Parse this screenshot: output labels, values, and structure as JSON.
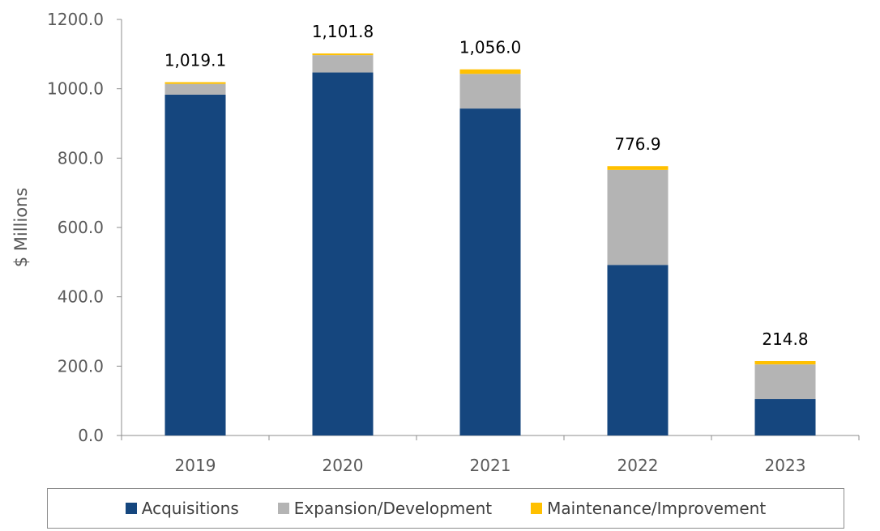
{
  "chart_data": {
    "type": "bar",
    "stacked": true,
    "categories": [
      "2019",
      "2020",
      "2021",
      "2022",
      "2023"
    ],
    "series": [
      {
        "name": "Acquisitions",
        "color": "#15467e",
        "values": [
          983.0,
          1047.0,
          943.0,
          492.0,
          105.0
        ]
      },
      {
        "name": "Expansion/Development",
        "color": "#b4b4b4",
        "values": [
          31.0,
          50.0,
          100.0,
          274.0,
          100.0
        ]
      },
      {
        "name": "Maintenance/Improvement",
        "color": "#ffc000",
        "values": [
          5.1,
          4.8,
          13.0,
          10.9,
          9.8
        ]
      }
    ],
    "totals": [
      "1,019.1",
      "1,101.8",
      "1,056.0",
      "776.9",
      "214.8"
    ],
    "ylabel": "$ Millions",
    "ylim": [
      0,
      1200
    ],
    "yticks": [
      "0.0",
      "200.0",
      "400.0",
      "600.0",
      "800.0",
      "1000.0",
      "1200.0"
    ],
    "grid": false,
    "legend_position": "bottom"
  }
}
